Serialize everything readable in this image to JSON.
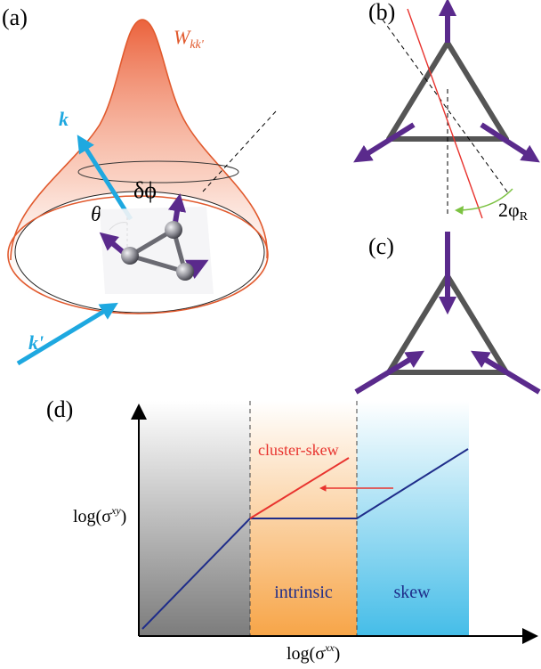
{
  "panels": {
    "a": {
      "label": "(a)",
      "w_symbol": "W",
      "w_subscript": "kk'",
      "k_label": "k",
      "kprime_label": "k'",
      "delta_phi": "δϕ",
      "theta": "θ"
    },
    "b": {
      "label": "(b)",
      "angle_label": "2φ",
      "angle_subscript": "R"
    },
    "c": {
      "label": "(c)"
    },
    "d": {
      "label": "(d)",
      "ylabel": "log(σ",
      "ylabel_sup": "xy",
      "xlabel": "log(σ",
      "xlabel_sup": "xx",
      "close_paren": ")",
      "cluster_skew": "cluster-skew",
      "region_intrinsic": "intrinsic",
      "region_skew": "skew"
    }
  },
  "colors": {
    "accent_blue": "#1ea8e0",
    "spin_purple": "#5a2a8c",
    "red_line": "#e8332e",
    "navy_line": "#1f2d8a",
    "green_arc": "#7cc242",
    "triangle_gray": "#555555"
  }
}
